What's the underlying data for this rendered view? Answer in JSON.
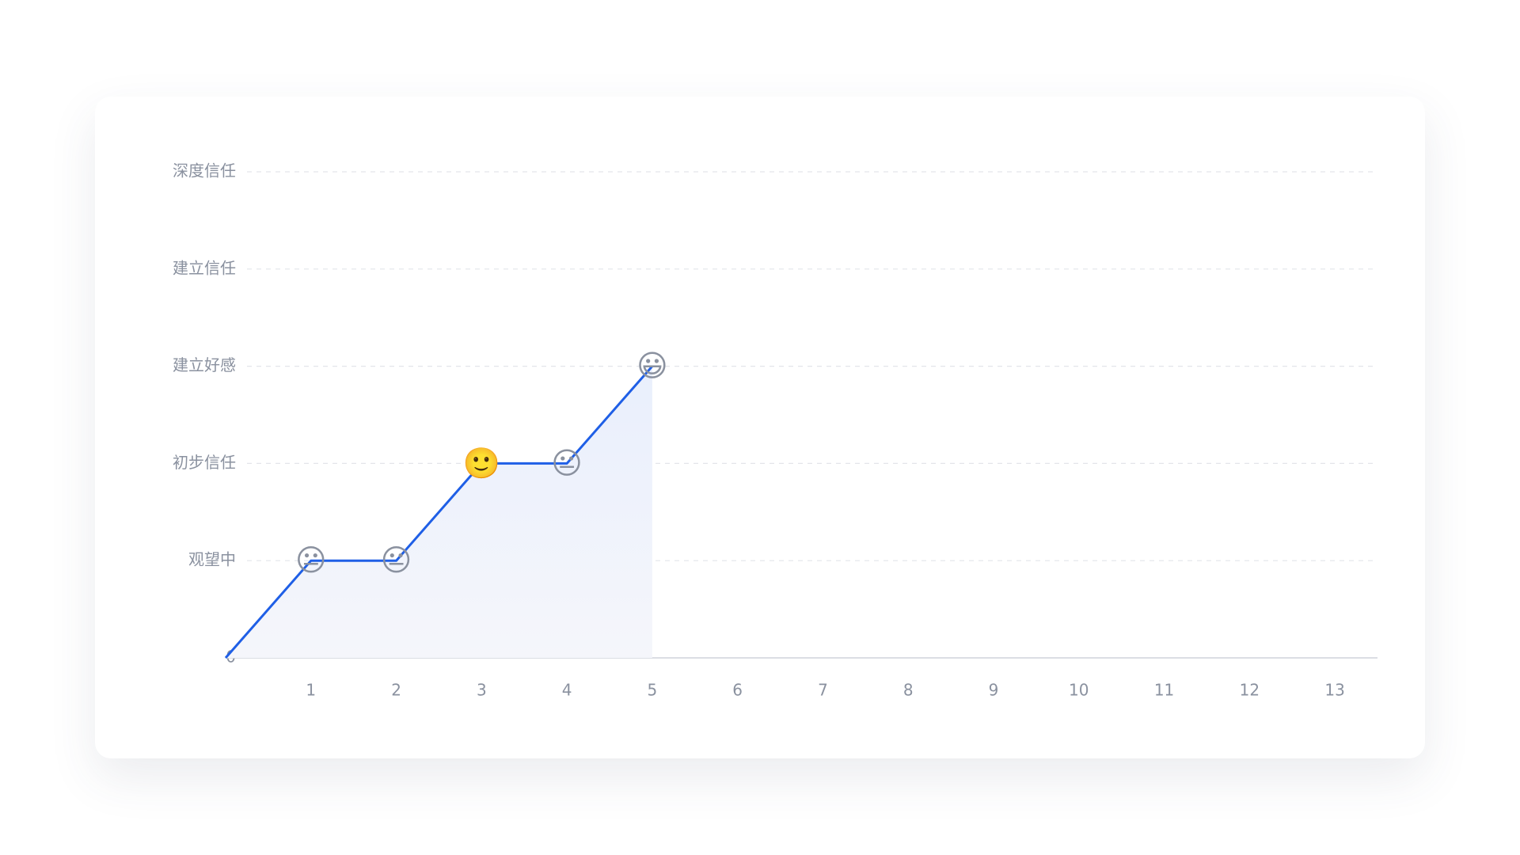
{
  "chart_data": {
    "type": "line",
    "x": [
      0,
      1,
      2,
      3,
      4,
      5
    ],
    "series": [
      {
        "color": "#1f5fe6",
        "values": [
          0,
          1,
          1,
          2,
          2,
          3
        ],
        "markers": [
          null,
          "😐",
          "😐",
          "🙂",
          "😐",
          "😃"
        ]
      }
    ],
    "xlim": [
      0,
      13.5
    ],
    "xticks": [
      1,
      2,
      3,
      4,
      5,
      6,
      7,
      8,
      9,
      10,
      11,
      12,
      13
    ],
    "ylim": [
      0,
      5
    ],
    "yticks": [
      0,
      {
        "value": 1,
        "label": "观望中"
      },
      {
        "value": 2,
        "label": "初步信任"
      },
      {
        "value": 3,
        "label": "建立好感"
      },
      {
        "value": 4,
        "label": "建立信任"
      },
      {
        "value": 5,
        "label": "深度信任"
      }
    ],
    "grid": true
  }
}
